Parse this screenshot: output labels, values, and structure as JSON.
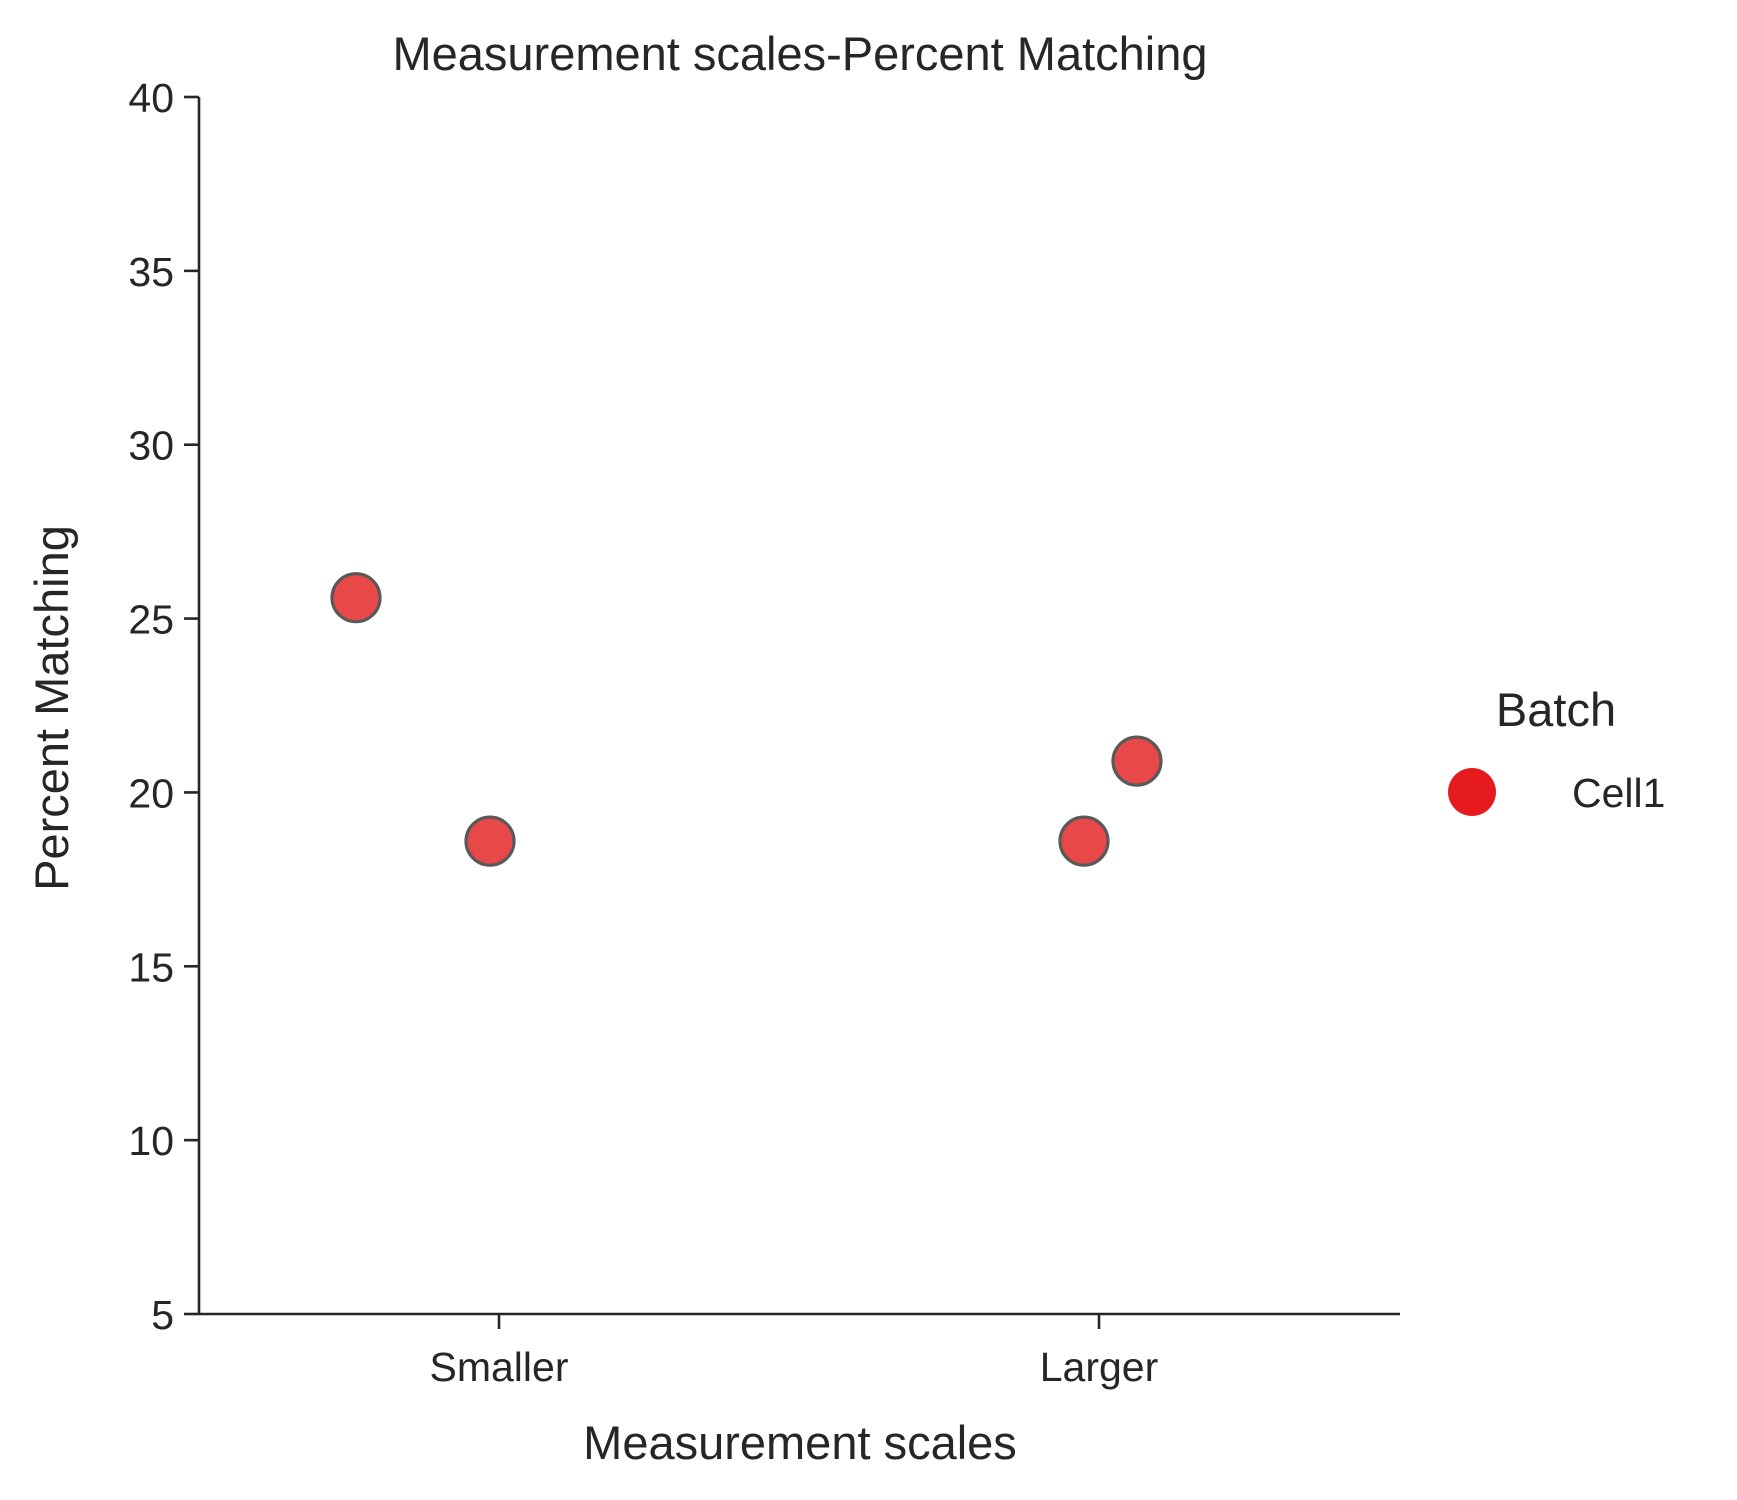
{
  "chart_data": {
    "type": "scatter",
    "title": "Measurement scales-Percent Matching",
    "xlabel": "Measurement scales",
    "ylabel": "Percent Matching",
    "categories": [
      "Smaller",
      "Larger"
    ],
    "ylim": [
      5,
      40
    ],
    "yticks": [
      "5",
      "10",
      "15",
      "20",
      "25",
      "30",
      "35",
      "40"
    ],
    "grid": false,
    "legend": {
      "title": "Batch",
      "placement": "right",
      "entries": [
        {
          "label": "Cell1",
          "color": "#e41a1c"
        }
      ]
    },
    "series": [
      {
        "name": "Cell1",
        "color": "#e41a1c",
        "edge_color": "#595959",
        "points": [
          {
            "category": "Smaller",
            "y": 25.6
          },
          {
            "category": "Smaller",
            "y": 18.6
          },
          {
            "category": "Larger",
            "y": 18.6
          },
          {
            "category": "Larger",
            "y": 20.9
          }
        ]
      }
    ]
  }
}
